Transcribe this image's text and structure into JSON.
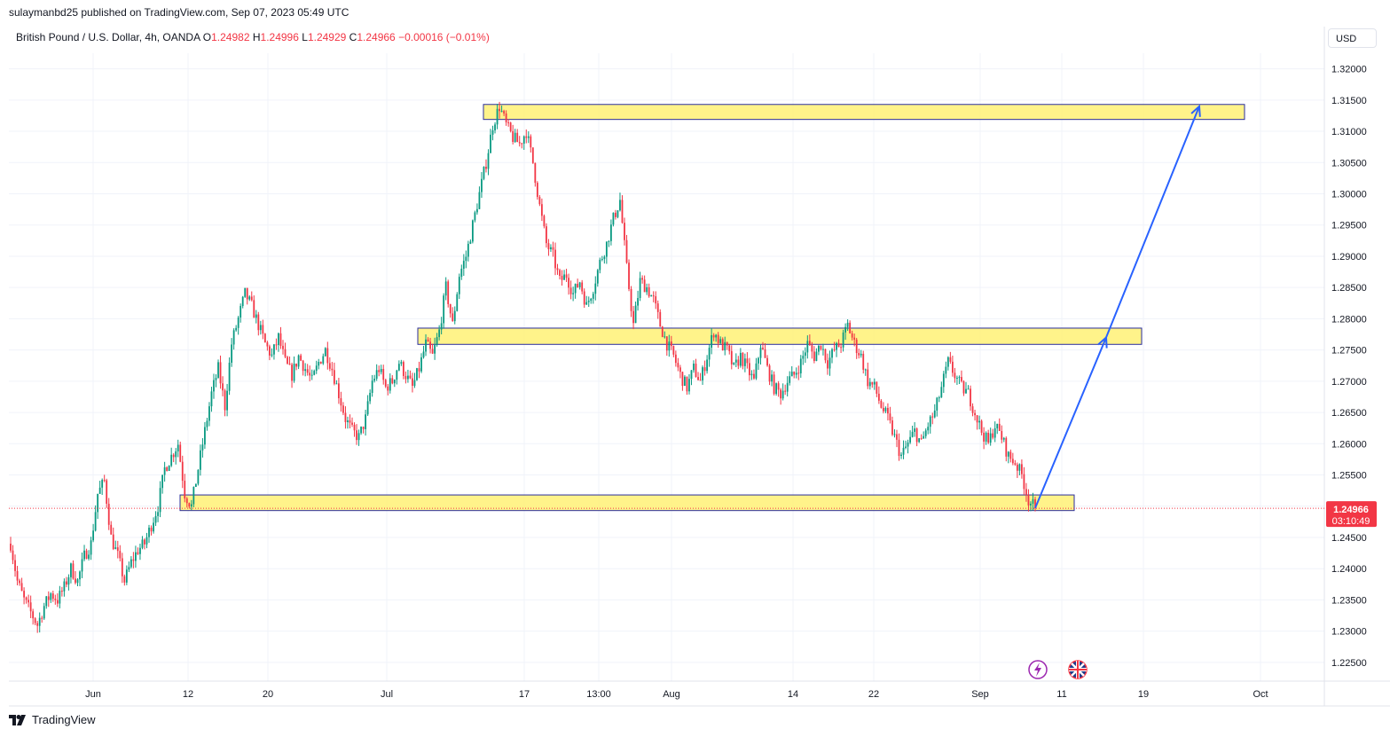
{
  "header": {
    "published_line": "sulaymanbd25 published on TradingView.com, Sep 07, 2023 05:49 UTC"
  },
  "legend": {
    "symbol": "British Pound / U.S. Dollar, 4h, OANDA",
    "open_label": "O",
    "open_value": "1.24982",
    "high_label": "H",
    "high_value": "1.24996",
    "low_label": "L",
    "low_value": "1.24929",
    "close_label": "C",
    "close_value": "1.24966",
    "change": "−0.00016 (−0.01%)"
  },
  "toolbar": {
    "currency_label": "USD"
  },
  "footer": {
    "brand": "TradingView"
  },
  "price_tag": {
    "price": "1.24966",
    "countdown": "03:10:49",
    "color": "#f23645"
  },
  "colors": {
    "up": "#089981",
    "down": "#f23645",
    "zone_fill": "#fff176",
    "zone_border": "#2a2e9c",
    "arrow": "#2962ff"
  },
  "events": [
    {
      "icon": "lightning-icon",
      "color": "#9c27b0"
    },
    {
      "icon": "uk-flag-icon",
      "color": "#f23645"
    }
  ],
  "chart_data": {
    "type": "candlestick",
    "ylim": [
      1.222,
      1.3225
    ],
    "grid": true,
    "y_ticks": [
      "1.32000",
      "1.31500",
      "1.31000",
      "1.30500",
      "1.30000",
      "1.29500",
      "1.29000",
      "1.28500",
      "1.28000",
      "1.27500",
      "1.27000",
      "1.26500",
      "1.26000",
      "1.25500",
      "1.25000",
      "1.24500",
      "1.24000",
      "1.23500",
      "1.23000",
      "1.22500"
    ],
    "x_ticks": [
      "Jun",
      "12",
      "20",
      "Jul",
      "17",
      "13:00",
      "Aug",
      "14",
      "22",
      "Sep",
      "11",
      "19",
      "Oct"
    ],
    "series": [
      {
        "points": [
          [
            0,
            1.244
          ],
          [
            3,
            1.238
          ],
          [
            6,
            1.235
          ],
          [
            9,
            1.233
          ],
          [
            12,
            1.231
          ],
          [
            15,
            1.234
          ],
          [
            18,
            1.236
          ],
          [
            21,
            1.235
          ],
          [
            24,
            1.237
          ],
          [
            27,
            1.24
          ],
          [
            30,
            1.238
          ],
          [
            33,
            1.242
          ],
          [
            36,
            1.244
          ],
          [
            39,
            1.252
          ],
          [
            42,
            1.254
          ],
          [
            45,
            1.245
          ],
          [
            48,
            1.242
          ],
          [
            51,
            1.238
          ],
          [
            54,
            1.241
          ],
          [
            57,
            1.243
          ],
          [
            60,
            1.244
          ],
          [
            63,
            1.247
          ],
          [
            66,
            1.25
          ],
          [
            69,
            1.256
          ],
          [
            72,
            1.258
          ],
          [
            75,
            1.26
          ],
          [
            78,
            1.252
          ],
          [
            81,
            1.25
          ],
          [
            84,
            1.256
          ],
          [
            87,
            1.262
          ],
          [
            90,
            1.268
          ],
          [
            93,
            1.272
          ],
          [
            96,
            1.266
          ],
          [
            99,
            1.276
          ],
          [
            102,
            1.28
          ],
          [
            105,
            1.284
          ],
          [
            108,
            1.282
          ],
          [
            111,
            1.279
          ],
          [
            114,
            1.276
          ],
          [
            117,
            1.274
          ],
          [
            120,
            1.277
          ],
          [
            123,
            1.273
          ],
          [
            126,
            1.271
          ],
          [
            129,
            1.274
          ],
          [
            132,
            1.272
          ],
          [
            135,
            1.27
          ],
          [
            138,
            1.273
          ],
          [
            141,
            1.275
          ],
          [
            144,
            1.272
          ],
          [
            147,
            1.268
          ],
          [
            150,
            1.264
          ],
          [
            153,
            1.262
          ],
          [
            156,
            1.261
          ],
          [
            159,
            1.264
          ],
          [
            162,
            1.27
          ],
          [
            165,
            1.272
          ],
          [
            168,
            1.269
          ],
          [
            171,
            1.27
          ],
          [
            174,
            1.273
          ],
          [
            177,
            1.271
          ],
          [
            180,
            1.269
          ],
          [
            183,
            1.272
          ],
          [
            186,
            1.276
          ],
          [
            189,
            1.274
          ],
          [
            192,
            1.278
          ],
          [
            195,
            1.285
          ],
          [
            198,
            1.279
          ],
          [
            201,
            1.287
          ],
          [
            204,
            1.29
          ],
          [
            207,
            1.295
          ],
          [
            210,
            1.3
          ],
          [
            213,
            1.305
          ],
          [
            216,
            1.311
          ],
          [
            219,
            1.314
          ],
          [
            222,
            1.311
          ],
          [
            225,
            1.309
          ],
          [
            228,
            1.308
          ],
          [
            231,
            1.31
          ],
          [
            234,
            1.305
          ],
          [
            237,
            1.298
          ],
          [
            240,
            1.292
          ],
          [
            243,
            1.29
          ],
          [
            246,
            1.286
          ],
          [
            249,
            1.287
          ],
          [
            252,
            1.284
          ],
          [
            255,
            1.286
          ],
          [
            258,
            1.282
          ],
          [
            261,
            1.285
          ],
          [
            264,
            1.289
          ],
          [
            267,
            1.292
          ],
          [
            270,
            1.296
          ],
          [
            273,
            1.299
          ],
          [
            276,
            1.288
          ],
          [
            279,
            1.279
          ],
          [
            282,
            1.286
          ],
          [
            285,
            1.285
          ],
          [
            288,
            1.283
          ],
          [
            291,
            1.279
          ],
          [
            294,
            1.276
          ],
          [
            297,
            1.274
          ],
          [
            300,
            1.271
          ],
          [
            303,
            1.269
          ],
          [
            306,
            1.272
          ],
          [
            309,
            1.27
          ],
          [
            312,
            1.274
          ],
          [
            315,
            1.278
          ],
          [
            318,
            1.276
          ],
          [
            321,
            1.275
          ],
          [
            324,
            1.272
          ],
          [
            327,
            1.274
          ],
          [
            330,
            1.272
          ],
          [
            333,
            1.27
          ],
          [
            336,
            1.276
          ],
          [
            339,
            1.272
          ],
          [
            342,
            1.269
          ],
          [
            345,
            1.268
          ],
          [
            348,
            1.27
          ],
          [
            351,
            1.271
          ],
          [
            354,
            1.273
          ],
          [
            357,
            1.276
          ],
          [
            360,
            1.274
          ],
          [
            363,
            1.276
          ],
          [
            366,
            1.273
          ],
          [
            369,
            1.275
          ],
          [
            372,
            1.276
          ],
          [
            375,
            1.279
          ],
          [
            378,
            1.276
          ],
          [
            381,
            1.274
          ],
          [
            384,
            1.27
          ],
          [
            387,
            1.269
          ],
          [
            390,
            1.266
          ],
          [
            393,
            1.264
          ],
          [
            396,
            1.261
          ],
          [
            399,
            1.258
          ],
          [
            402,
            1.26
          ],
          [
            405,
            1.262
          ],
          [
            408,
            1.26
          ],
          [
            411,
            1.263
          ],
          [
            414,
            1.265
          ],
          [
            417,
            1.269
          ],
          [
            420,
            1.273
          ],
          [
            423,
            1.271
          ],
          [
            426,
            1.269
          ],
          [
            429,
            1.268
          ],
          [
            432,
            1.265
          ],
          [
            435,
            1.262
          ],
          [
            438,
            1.26
          ],
          [
            441,
            1.263
          ],
          [
            444,
            1.261
          ],
          [
            447,
            1.258
          ],
          [
            450,
            1.257
          ],
          [
            453,
            1.255
          ],
          [
            456,
            1.251
          ],
          [
            459,
            1.2497
          ]
        ]
      }
    ],
    "zones": [
      {
        "top": 1.3143,
        "bottom": 1.3119
      },
      {
        "top": 1.2785,
        "bottom": 1.2759
      },
      {
        "top": 1.2518,
        "bottom": 1.2493
      }
    ],
    "projection": [
      1.2497,
      1.277,
      1.314
    ],
    "last_price": 1.24966
  }
}
